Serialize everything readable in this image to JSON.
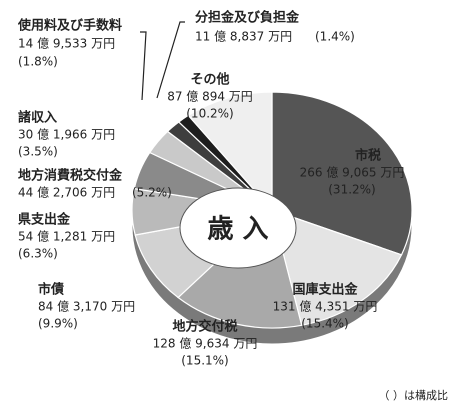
{
  "chart_data": {
    "type": "pie",
    "title": "歳 入",
    "note": "（ ）は構成比",
    "categories": [
      "市税",
      "国庫支出金",
      "地方交付税",
      "市債",
      "県支出金",
      "地方消費税交付金",
      "諸収入",
      "使用料及び手数料",
      "分担金及び負担金",
      "その他"
    ],
    "amount_labels": [
      "266 億 9,065 万円",
      "131 億 4,351 万円",
      "128 億 9,634 万円",
      "84 億 3,170 万円",
      "54 億 1,281 万円",
      "44 億 2,706 万円",
      "30 億 1,966 万円",
      "14 億 9,533 万円",
      "11 億 8,837 万円",
      "87 億 894 万円"
    ],
    "values": [
      31.2,
      15.4,
      15.1,
      9.9,
      6.3,
      5.2,
      3.5,
      1.8,
      1.4,
      10.2
    ],
    "value_labels": [
      "(31.2%)",
      "(15.4%)",
      "(15.1%)",
      "(9.9%)",
      "(6.3%)",
      "(5.2%)",
      "(3.5%)",
      "(1.8%)",
      "(1.4%)",
      "(10.2%)"
    ],
    "colors": [
      "#555555",
      "#e4e4e4",
      "#a9a9a9",
      "#d2d2d2",
      "#bababa",
      "#8a8a8a",
      "#c9c9c9",
      "#3e3e3e",
      "#1e1e1e",
      "#efefef"
    ]
  }
}
